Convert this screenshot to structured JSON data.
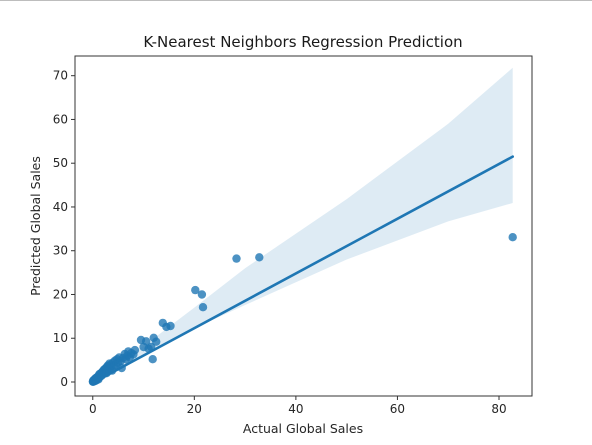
{
  "chart_data": {
    "type": "scatter",
    "title": "K-Nearest Neighbors Regression Prediction",
    "xlabel": "Actual Global Sales",
    "ylabel": "Predicted Global Sales",
    "xlim": [
      -3.5,
      86.5
    ],
    "ylim": [
      -3.2,
      74.5
    ],
    "xticks": [
      0,
      20,
      40,
      60,
      80
    ],
    "yticks": [
      0,
      10,
      20,
      30,
      40,
      50,
      60,
      70
    ],
    "grid": false,
    "colors": {
      "point": "#1f77b4",
      "line": "#1f77b4",
      "band": "#1f77b4"
    },
    "points": [
      [
        0.02,
        0.05
      ],
      [
        0.05,
        0.2
      ],
      [
        0.1,
        0.1
      ],
      [
        0.15,
        0.4
      ],
      [
        0.2,
        0.15
      ],
      [
        0.25,
        0.3
      ],
      [
        0.3,
        0.5
      ],
      [
        0.35,
        0.2
      ],
      [
        0.4,
        0.6
      ],
      [
        0.45,
        0.35
      ],
      [
        0.5,
        0.8
      ],
      [
        0.55,
        0.45
      ],
      [
        0.6,
        0.3
      ],
      [
        0.65,
        0.9
      ],
      [
        0.7,
        0.6
      ],
      [
        0.75,
        1.0
      ],
      [
        0.8,
        0.5
      ],
      [
        0.85,
        0.7
      ],
      [
        0.9,
        1.1
      ],
      [
        1.0,
        0.9
      ],
      [
        1.05,
        1.3
      ],
      [
        1.1,
        0.6
      ],
      [
        1.2,
        1.5
      ],
      [
        1.25,
        1.0
      ],
      [
        1.3,
        1.8
      ],
      [
        1.4,
        1.2
      ],
      [
        1.5,
        1.6
      ],
      [
        1.6,
        2.0
      ],
      [
        1.7,
        1.4
      ],
      [
        1.8,
        2.2
      ],
      [
        1.9,
        1.7
      ],
      [
        2.0,
        2.5
      ],
      [
        2.1,
        1.9
      ],
      [
        2.2,
        2.8
      ],
      [
        2.3,
        2.2
      ],
      [
        2.4,
        3.0
      ],
      [
        2.5,
        2.4
      ],
      [
        2.6,
        3.2
      ],
      [
        2.7,
        2.0
      ],
      [
        2.8,
        3.5
      ],
      [
        2.9,
        2.7
      ],
      [
        3.0,
        3.8
      ],
      [
        3.2,
        3.0
      ],
      [
        3.3,
        4.2
      ],
      [
        3.5,
        3.3
      ],
      [
        3.6,
        4.0
      ],
      [
        3.8,
        2.6
      ],
      [
        4.0,
        4.5
      ],
      [
        4.2,
        3.6
      ],
      [
        4.4,
        4.9
      ],
      [
        4.6,
        3.9
      ],
      [
        4.8,
        5.2
      ],
      [
        5.0,
        4.4
      ],
      [
        5.2,
        5.6
      ],
      [
        5.5,
        4.8
      ],
      [
        5.7,
        3.2
      ],
      [
        6.0,
        5.5
      ],
      [
        6.3,
        6.4
      ],
      [
        6.5,
        5.2
      ],
      [
        6.8,
        6.0
      ],
      [
        7.0,
        7.0
      ],
      [
        7.3,
        5.6
      ],
      [
        7.6,
        6.6
      ],
      [
        8.0,
        6.3
      ],
      [
        8.3,
        7.3
      ],
      [
        9.5,
        9.6
      ],
      [
        10.0,
        8.0
      ],
      [
        10.5,
        9.3
      ],
      [
        11.0,
        7.6
      ],
      [
        11.5,
        8.0
      ],
      [
        11.8,
        5.2
      ],
      [
        12.0,
        10.1
      ],
      [
        12.5,
        9.2
      ],
      [
        13.8,
        13.5
      ],
      [
        14.5,
        12.6
      ],
      [
        15.3,
        12.8
      ],
      [
        20.2,
        21.0
      ],
      [
        21.5,
        20.0
      ],
      [
        21.7,
        17.1
      ],
      [
        28.3,
        28.2
      ],
      [
        32.8,
        28.5
      ],
      [
        82.7,
        33.1
      ]
    ],
    "regression": {
      "x_start": 0,
      "x_end": 82.7,
      "y_start": -0.2,
      "y_end": 51.5
    },
    "ci_band": {
      "upper": [
        [
          0,
          0.35
        ],
        [
          5,
          4.8
        ],
        [
          10,
          8.2
        ],
        [
          20,
          17.0
        ],
        [
          30,
          26.0
        ],
        [
          50,
          41.8
        ],
        [
          70,
          59.0
        ],
        [
          82.7,
          71.8
        ]
      ],
      "lower": [
        [
          0,
          -0.55
        ],
        [
          5,
          2.8
        ],
        [
          10,
          6.0
        ],
        [
          20,
          12.3
        ],
        [
          30,
          17.6
        ],
        [
          50,
          28.0
        ],
        [
          70,
          36.7
        ],
        [
          82.7,
          40.9
        ]
      ]
    }
  }
}
